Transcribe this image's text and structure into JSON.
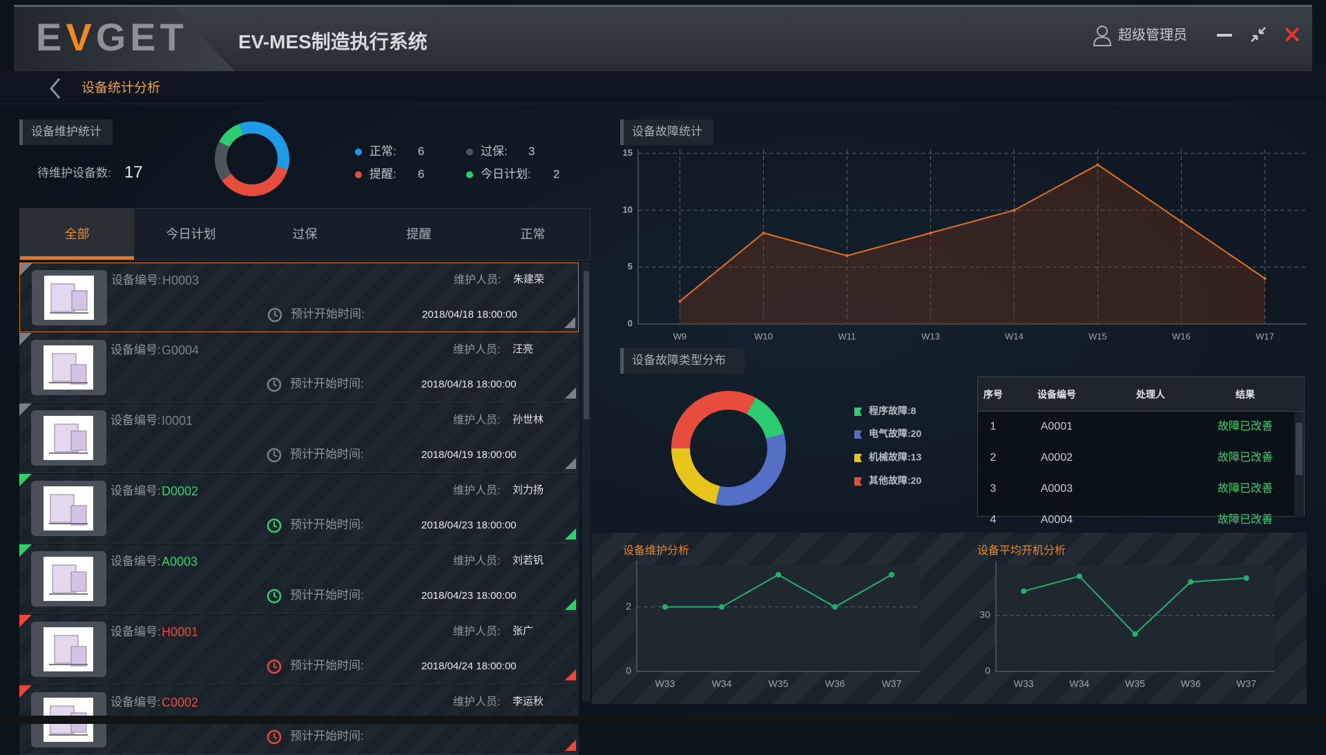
{
  "header": {
    "logo": "EVGET",
    "title": "EV-MES制造执行系统",
    "user": "超级管理员"
  },
  "breadcrumb": "设备统计分析",
  "maintenance": {
    "title": "设备维护统计",
    "pending_label": "待维护设备数:",
    "pending_count": 17,
    "tabs": [
      "全部",
      "今日计划",
      "过保",
      "提醒",
      "正常"
    ],
    "active_tab": 0,
    "labels": {
      "code": "设备编号:",
      "person": "维护人员:",
      "time": "预计开始时间:"
    },
    "items": [
      {
        "code": "H0003",
        "person": "朱建荣",
        "time": "2018/04/18 18:00:00",
        "color": "#7a8089",
        "selected": true
      },
      {
        "code": "G0004",
        "person": "汪亮",
        "time": "2018/04/18 18:00:00",
        "color": "#7a8089"
      },
      {
        "code": "I0001",
        "person": "孙世林",
        "time": "2018/04/19 18:00:00",
        "color": "#7a8089"
      },
      {
        "code": "D0002",
        "person": "刘力扬",
        "time": "2018/04/23 18:00:00",
        "color": "#2fcf6a"
      },
      {
        "code": "A0003",
        "person": "刘若钒",
        "time": "2018/04/23 18:00:00",
        "color": "#2fcf6a"
      },
      {
        "code": "H0001",
        "person": "张广",
        "time": "2018/04/24 18:00:00",
        "color": "#e8483a"
      },
      {
        "code": "C0002",
        "person": "李运秋",
        "color": "#e8483a"
      }
    ]
  },
  "chart_data": [
    {
      "type": "donut",
      "categories": [
        "正常:",
        "提醒:",
        "过保:",
        "今日计划:"
      ],
      "values": [
        6,
        6,
        3,
        2
      ],
      "colors": [
        "#1e9be6",
        "#e84c3d",
        "#50555c",
        "#2ecc71"
      ]
    },
    {
      "type": "line",
      "title": "设备故障统计",
      "categories": [
        "W9",
        "W10",
        "W11",
        "W13",
        "W14",
        "W15",
        "W16",
        "W17"
      ],
      "values": [
        2,
        8,
        6,
        8,
        10,
        14,
        9,
        4
      ],
      "color": "#e8701a",
      "area": true,
      "ylim": [
        0,
        15
      ],
      "yticks": [
        0,
        5,
        10,
        15
      ],
      "grid": true,
      "xgrid": true
    },
    {
      "type": "donut",
      "title": "设备故障类型分布",
      "categories": [
        "程序故障:8",
        "电气故障:20",
        "机械故障:13",
        "其他故障:20"
      ],
      "values": [
        8,
        20,
        13,
        20
      ],
      "colors": [
        "#2ecc71",
        "#5470c6",
        "#e8c51a",
        "#e84c3d"
      ]
    },
    {
      "type": "line",
      "title": "设备维护分析",
      "categories": [
        "W33",
        "W34",
        "W35",
        "W36",
        "W37"
      ],
      "values": [
        2,
        2,
        3,
        2,
        3
      ],
      "color": "#1fb46e",
      "ylim": [
        0,
        3.3
      ],
      "yticks": [
        0,
        2
      ],
      "grid": true
    },
    {
      "type": "line",
      "title": "设备平均开机分析",
      "categories": [
        "W33",
        "W34",
        "W35",
        "W36",
        "W37"
      ],
      "values": [
        43,
        51,
        20,
        48,
        50
      ],
      "color": "#1fb46e",
      "ylim": [
        0,
        57
      ],
      "yticks": [
        0,
        30
      ],
      "grid": true
    }
  ],
  "fault_table": {
    "columns": [
      "序号",
      "设备编号",
      "处理人",
      "结果"
    ],
    "rows": [
      {
        "no": 1,
        "code": "A0001",
        "result": "故障已改善"
      },
      {
        "no": 2,
        "code": "A0002",
        "result": "故障已改善"
      },
      {
        "no": 3,
        "code": "A0003",
        "result": "故障已改善"
      },
      {
        "no": 4,
        "code": "A0004",
        "result": "故障已改善"
      }
    ]
  }
}
